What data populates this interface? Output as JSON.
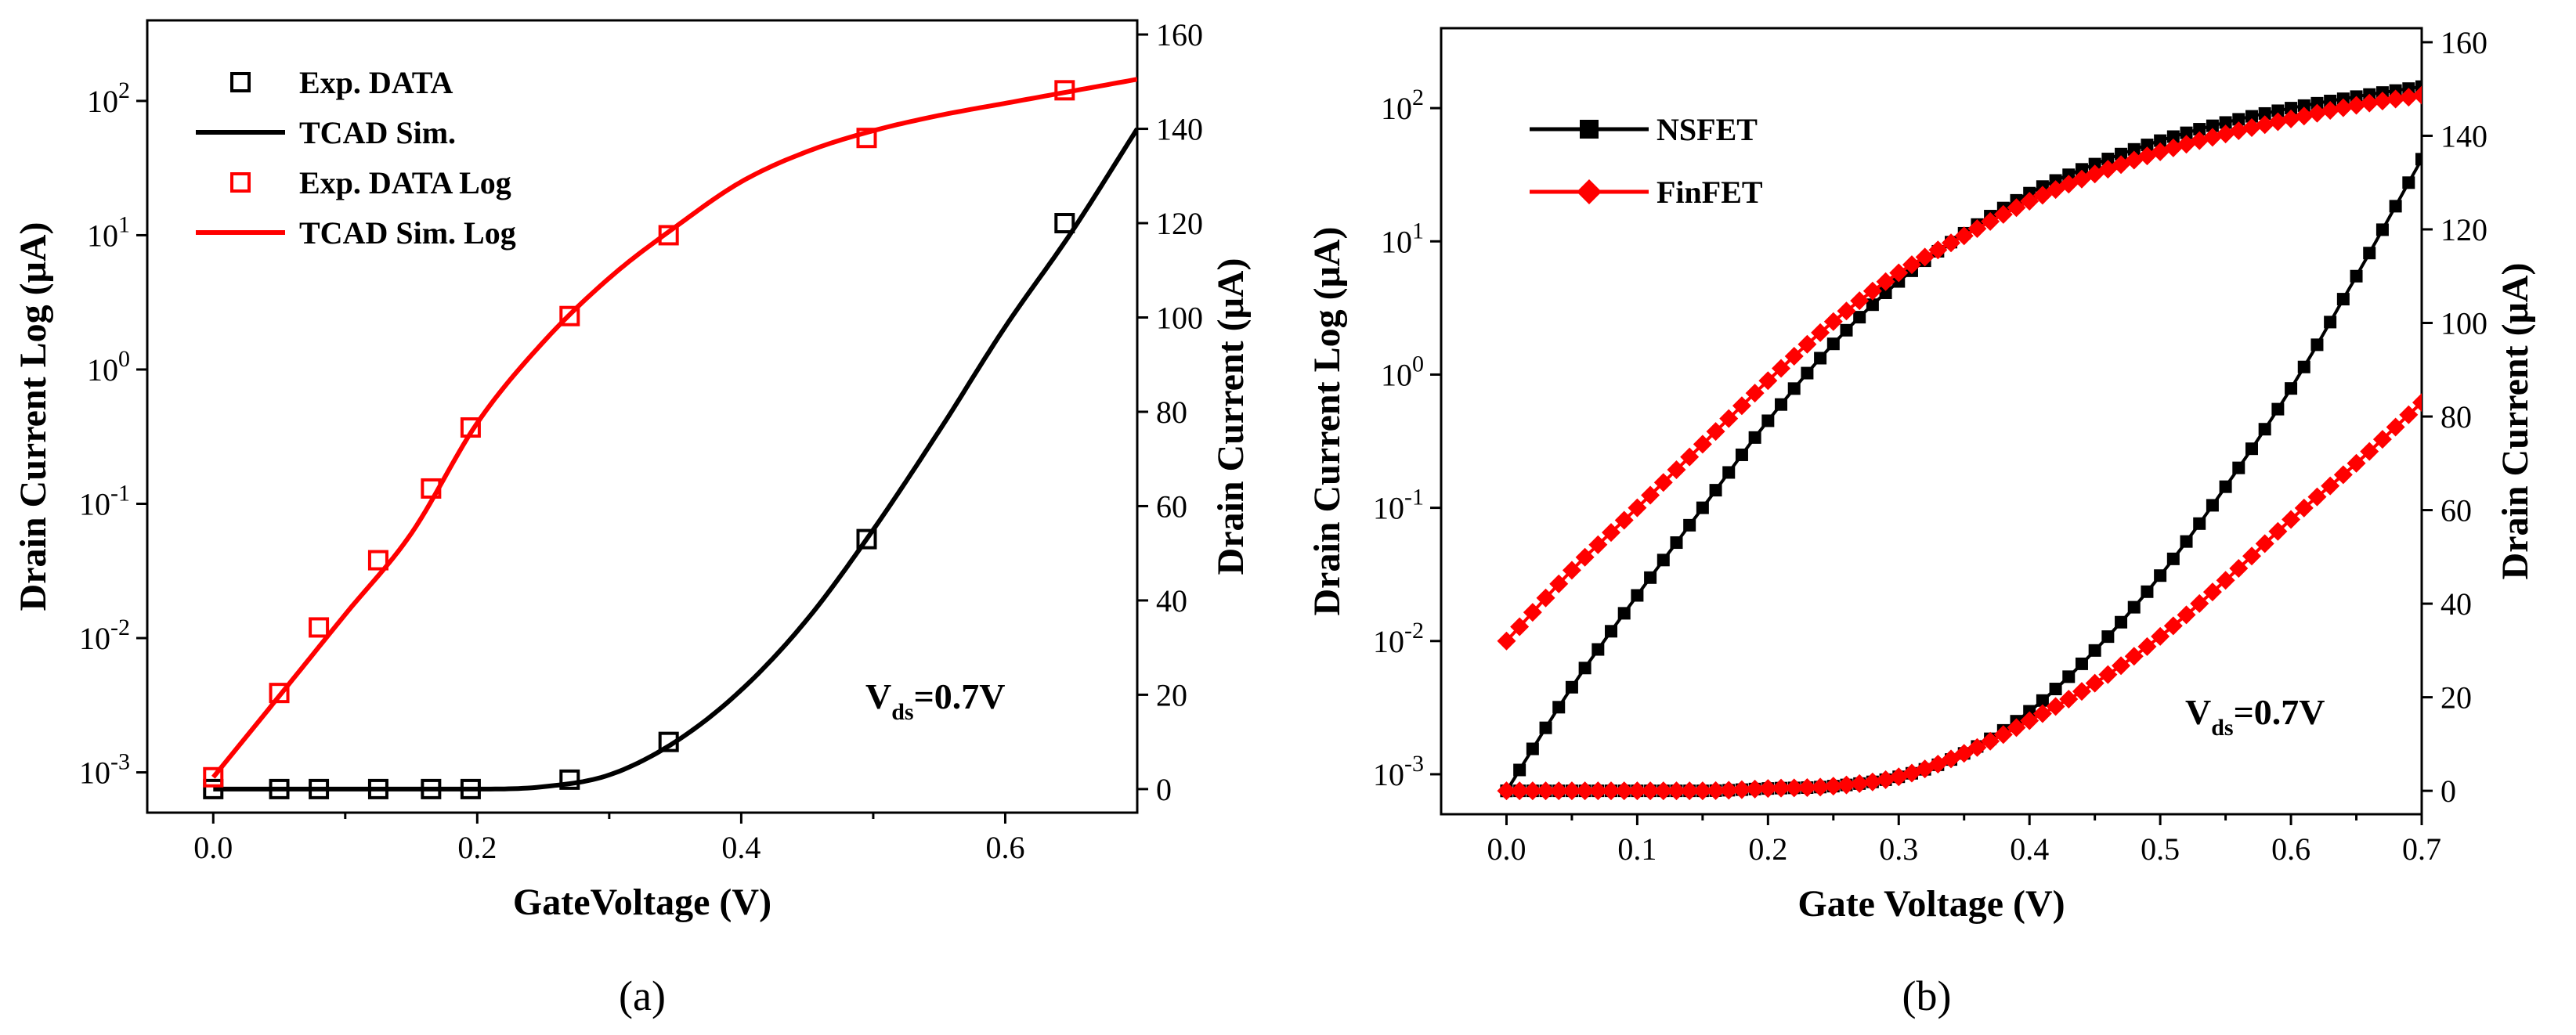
{
  "colors": {
    "black": "#000000",
    "red": "#ff0000",
    "axis": "#000000"
  },
  "chart_data": [
    {
      "panel": "a",
      "type": "scatter",
      "caption": "(a)",
      "xlabel": "GateVoltage (V)",
      "ylabel_left": "Drain Current Log (μA)",
      "ylabel_right": "Drain Current (μA)",
      "xlim": [
        -0.05,
        0.7
      ],
      "ylim_left_log10": [
        -3.3,
        2.6
      ],
      "ylim_right": [
        -5,
        163
      ],
      "xticks": [
        0.0,
        0.2,
        0.4,
        0.6
      ],
      "xtick_labels": [
        "0.0",
        "0.2",
        "0.4",
        "0.6"
      ],
      "yticks_left_exp": [
        -3,
        -2,
        -1,
        0,
        1,
        2
      ],
      "ytick_left_base": "10",
      "ytick_left_exps": [
        "-3",
        "-2",
        "-1",
        "0",
        "1",
        "2"
      ],
      "yticks_right": [
        0,
        20,
        40,
        60,
        80,
        100,
        120,
        140,
        160
      ],
      "ytick_right_labels": [
        "0",
        "20",
        "40",
        "60",
        "80",
        "100",
        "120",
        "140",
        "160"
      ],
      "annotation": {
        "main": "V",
        "sub": "ds",
        "rest": "=0.7V"
      },
      "legend": [
        {
          "label": "Exp. DATA",
          "color": "black",
          "kind": "square"
        },
        {
          "label": "TCAD Sim.",
          "color": "black",
          "kind": "line"
        },
        {
          "label": "Exp. DATA Log",
          "color": "red",
          "kind": "square"
        },
        {
          "label": "TCAD Sim. Log",
          "color": "red",
          "kind": "line"
        }
      ],
      "series": [
        {
          "name": "Exp. DATA",
          "axis": "right",
          "kind": "markers",
          "color": "black",
          "x": [
            0.0,
            0.05,
            0.08,
            0.125,
            0.165,
            0.195,
            0.27,
            0.345,
            0.495,
            0.645
          ],
          "y": [
            0,
            0,
            0,
            0,
            0,
            0,
            2,
            10,
            53,
            120
          ]
        },
        {
          "name": "TCAD Sim.",
          "axis": "right",
          "kind": "line",
          "color": "black",
          "x": [
            0.0,
            0.05,
            0.1,
            0.15,
            0.2,
            0.25,
            0.3,
            0.35,
            0.4,
            0.45,
            0.5,
            0.55,
            0.6,
            0.65,
            0.7
          ],
          "y": [
            0,
            0,
            0,
            0,
            0,
            0.5,
            3,
            10,
            21,
            36,
            55,
            76,
            98,
            118,
            140
          ]
        },
        {
          "name": "Exp. DATA Log",
          "axis": "left",
          "kind": "markers",
          "color": "red",
          "x": [
            0.0,
            0.05,
            0.08,
            0.125,
            0.165,
            0.195,
            0.27,
            0.345,
            0.495,
            0.645
          ],
          "y": [
            0.00092,
            0.0039,
            0.012,
            0.038,
            0.13,
            0.37,
            2.5,
            10,
            53,
            120
          ]
        },
        {
          "name": "TCAD Sim. Log",
          "axis": "left",
          "kind": "line",
          "color": "red",
          "x": [
            0.0,
            0.05,
            0.1,
            0.15,
            0.2,
            0.25,
            0.3,
            0.35,
            0.4,
            0.45,
            0.5,
            0.55,
            0.6,
            0.65,
            0.7
          ],
          "y": [
            0.00092,
            0.0037,
            0.015,
            0.06,
            0.4,
            1.6,
            4.8,
            11.5,
            25,
            42,
            60,
            78,
            96,
            118,
            145
          ]
        }
      ]
    },
    {
      "panel": "b",
      "type": "scatter",
      "caption": "(b)",
      "xlabel": "Gate Voltage (V)",
      "ylabel_left": "Drain Current Log (μA)",
      "ylabel_right": "Drain Current (μA)",
      "xlim": [
        -0.05,
        0.7
      ],
      "ylim_left_log10": [
        -3.3,
        2.6
      ],
      "ylim_right": [
        -5,
        163
      ],
      "xticks": [
        0.0,
        0.1,
        0.2,
        0.3,
        0.4,
        0.5,
        0.6,
        0.7
      ],
      "xtick_labels": [
        "0.0",
        "0.1",
        "0.2",
        "0.3",
        "0.4",
        "0.5",
        "0.6",
        "0.7"
      ],
      "yticks_left_exp": [
        -3,
        -2,
        -1,
        0,
        1,
        2
      ],
      "ytick_left_base": "10",
      "ytick_left_exps": [
        "-3",
        "-2",
        "-1",
        "0",
        "1",
        "2"
      ],
      "yticks_right": [
        0,
        20,
        40,
        60,
        80,
        100,
        120,
        140,
        160
      ],
      "ytick_right_labels": [
        "0",
        "20",
        "40",
        "60",
        "80",
        "100",
        "120",
        "140",
        "160"
      ],
      "annotation": {
        "main": "V",
        "sub": "ds",
        "rest": "=0.7V"
      },
      "legend": [
        {
          "label": "NSFET",
          "color": "black",
          "kind": "line-square"
        },
        {
          "label": "FinFET",
          "color": "red",
          "kind": "line-diamond"
        }
      ],
      "series": [
        {
          "name": "NSFET",
          "axis": "left",
          "kind": "line-square",
          "color": "black",
          "x": [
            0.0,
            0.05,
            0.1,
            0.15,
            0.2,
            0.25,
            0.3,
            0.35,
            0.4,
            0.45,
            0.5,
            0.55,
            0.6,
            0.65,
            0.7
          ],
          "y": [
            0.00075,
            0.0045,
            0.022,
            0.1,
            0.45,
            1.7,
            5.0,
            11.5,
            23,
            38,
            57,
            78,
            100,
            122,
            145
          ]
        },
        {
          "name": "FinFET",
          "axis": "left",
          "kind": "line-diamond",
          "color": "red",
          "x": [
            0.0,
            0.05,
            0.1,
            0.15,
            0.2,
            0.25,
            0.3,
            0.35,
            0.4,
            0.45,
            0.5,
            0.55,
            0.6,
            0.65,
            0.7
          ],
          "y": [
            0.01,
            0.034,
            0.1,
            0.3,
            0.9,
            2.5,
            5.8,
            11,
            20,
            32,
            47,
            64,
            83,
            105,
            125
          ]
        },
        {
          "name": "NSFET",
          "axis": "right",
          "kind": "line-square",
          "color": "black",
          "x": [
            0.0,
            0.05,
            0.1,
            0.15,
            0.2,
            0.25,
            0.3,
            0.35,
            0.4,
            0.45,
            0.5,
            0.55,
            0.6,
            0.65,
            0.7
          ],
          "y": [
            0,
            0,
            0,
            0,
            0.5,
            1,
            3,
            8,
            17,
            30,
            46,
            65,
            86,
            110,
            135
          ]
        },
        {
          "name": "FinFET",
          "axis": "right",
          "kind": "line-diamond",
          "color": "red",
          "x": [
            0.0,
            0.05,
            0.1,
            0.15,
            0.2,
            0.25,
            0.3,
            0.35,
            0.4,
            0.45,
            0.5,
            0.55,
            0.6,
            0.65,
            0.7
          ],
          "y": [
            0,
            0,
            0,
            0,
            0.5,
            1,
            3,
            8,
            15,
            23,
            33,
            45,
            58,
            70,
            83
          ]
        }
      ]
    }
  ]
}
